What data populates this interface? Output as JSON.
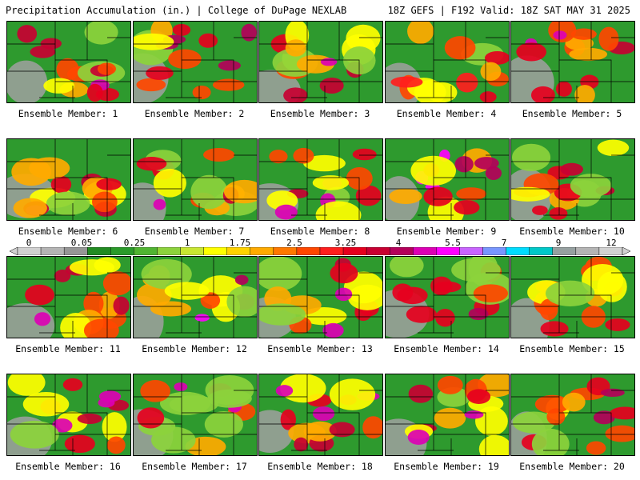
{
  "header": {
    "title": "Precipitation Accumulation (in.) | College of DuPage NEXLAB",
    "run_info": "18Z GEFS | F192 Valid: 18Z SAT MAY 31 2025"
  },
  "panels": [
    {
      "label": "Ensemble Member: 1",
      "seed": 11,
      "max_level": 15
    },
    {
      "label": "Ensemble Member: 2",
      "seed": 22,
      "max_level": 14
    },
    {
      "label": "Ensemble Member: 3",
      "seed": 33,
      "max_level": 15
    },
    {
      "label": "Ensemble Member: 4",
      "seed": 44,
      "max_level": 13
    },
    {
      "label": "Ensemble Member: 5",
      "seed": 55,
      "max_level": 15
    },
    {
      "label": "Ensemble Member: 6",
      "seed": 66,
      "max_level": 15
    },
    {
      "label": "Ensemble Member: 7",
      "seed": 77,
      "max_level": 15
    },
    {
      "label": "Ensemble Member: 8",
      "seed": 88,
      "max_level": 15
    },
    {
      "label": "Ensemble Member: 9",
      "seed": 99,
      "max_level": 16
    },
    {
      "label": "Ensemble Member: 10",
      "seed": 110,
      "max_level": 13
    },
    {
      "label": "Ensemble Member: 11",
      "seed": 121,
      "max_level": 15
    },
    {
      "label": "Ensemble Member: 12",
      "seed": 132,
      "max_level": 16
    },
    {
      "label": "Ensemble Member: 13",
      "seed": 143,
      "max_level": 15
    },
    {
      "label": "Ensemble Member: 14",
      "seed": 154,
      "max_level": 14
    },
    {
      "label": "Ensemble Member: 15",
      "seed": 165,
      "max_level": 12
    },
    {
      "label": "Ensemble Member: 16",
      "seed": 176,
      "max_level": 15
    },
    {
      "label": "Ensemble Member: 17",
      "seed": 187,
      "max_level": 15
    },
    {
      "label": "Ensemble Member: 18",
      "seed": 198,
      "max_level": 15
    },
    {
      "label": "Ensemble Member: 19",
      "seed": 209,
      "max_level": 15
    },
    {
      "label": "Ensemble Member: 20",
      "seed": 220,
      "max_level": 14
    }
  ],
  "colorbar": {
    "tick_labels": [
      "0",
      "0.05",
      "0.25",
      "1",
      "1.75",
      "2.5",
      "3.25",
      "4",
      "5.5",
      "7",
      "9",
      "12"
    ],
    "colors": [
      "#d0d0d0",
      "#b4b4b4",
      "#969696",
      "#228b22",
      "#2a9a2a",
      "#50b432",
      "#8cd23c",
      "#c8e632",
      "#ffff00",
      "#ffd200",
      "#ffaa00",
      "#ff7800",
      "#ff4600",
      "#ff1e1e",
      "#e6001e",
      "#c80032",
      "#b4005a",
      "#dc00b4",
      "#ff00ff",
      "#c864ff",
      "#7896ff",
      "#00dcff",
      "#00c8c8",
      "#96a0a0",
      "#b4b4b4",
      "#d2d2d2"
    ]
  }
}
